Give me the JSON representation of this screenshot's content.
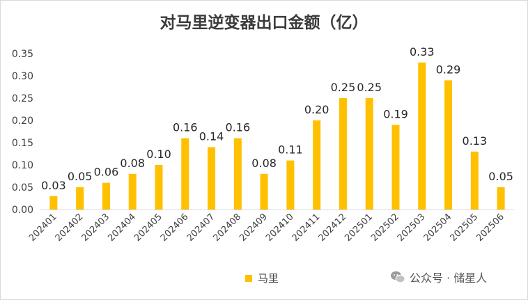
{
  "chart_data": {
    "type": "bar",
    "title": "对马里逆变器出口金额（亿）",
    "categories": [
      "202401",
      "202402",
      "202403",
      "202404",
      "202405",
      "202406",
      "202407",
      "202408",
      "202409",
      "202410",
      "202411",
      "202412",
      "202501",
      "202502",
      "202503",
      "202504",
      "202505",
      "202506"
    ],
    "series": [
      {
        "name": "马里",
        "values": [
          0.03,
          0.05,
          0.06,
          0.08,
          0.1,
          0.16,
          0.14,
          0.16,
          0.08,
          0.11,
          0.2,
          0.25,
          0.25,
          0.19,
          0.33,
          0.29,
          0.13,
          0.05
        ],
        "labels": [
          "0.03",
          "0.05",
          "0.06",
          "0.08",
          "0.10",
          "0.16",
          "0.14",
          "0.16",
          "0.08",
          "0.11",
          "0.20",
          "0.25",
          "0.25",
          "0.19",
          "0.33",
          "0.29",
          "0.13",
          "0.05"
        ],
        "color": "#FFC000"
      }
    ],
    "yticks": [
      "0.00",
      "0.05",
      "0.10",
      "0.15",
      "0.20",
      "0.25",
      "0.30",
      "0.35"
    ],
    "ylim": [
      0,
      0.35
    ],
    "grid": false,
    "legend_position": "bottom",
    "xtick_rotation": "-45deg"
  },
  "watermark": {
    "text": "公众号 · 储星人",
    "icon": "wechat-icon"
  }
}
